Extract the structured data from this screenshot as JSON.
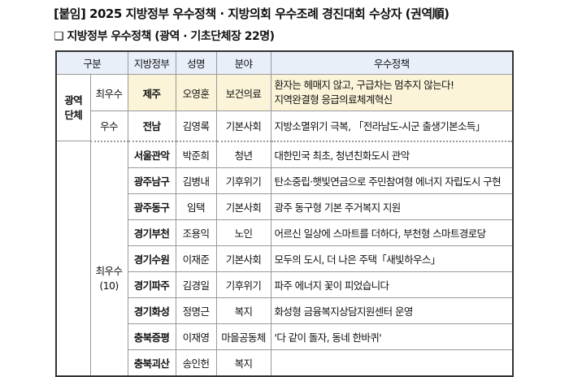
{
  "title": "[붙임] 2025 지방정부 우수정책 · 지방의회 우수조례 경진대회 수상자 (권역順)",
  "subtitle": "❑ 지방정부 우수정책 (광역 · 기초단체장 22명)",
  "headers": {
    "category": "구분",
    "gov": "지방정부",
    "name": "성명",
    "field": "분야",
    "policy": "우수정책"
  },
  "groups": {
    "metro": "광역\n단체",
    "top": "최우수",
    "excellent": "우수",
    "top10": "최우수\n(10)"
  },
  "metro_rows": [
    {
      "gov": "제주",
      "name": "오영훈",
      "field": "보건의료",
      "policy": "환자는 헤매지 않고, 구급차는 멈추지 않는다!",
      "policy2": "지역완결형 응급의료체계혁신"
    },
    {
      "gov": "전남",
      "name": "김영록",
      "field": "기본사회",
      "policy": "지방소멸위기 극복, 「전라남도-시군 출생기본소득」"
    }
  ],
  "basic_rows": [
    {
      "gov": "서울관악",
      "name": "박준희",
      "field": "청년",
      "policy": "대한민국 최초, 청년친화도시 관악"
    },
    {
      "gov": "광주남구",
      "name": "김병내",
      "field": "기후위기",
      "policy": "탄소중립·햇빛연금으로 주민참여형 에너지 자립도시 구현"
    },
    {
      "gov": "광주동구",
      "name": "임택",
      "field": "기본사회",
      "policy": "광주 동구형 기본 주거복지 지원"
    },
    {
      "gov": "경기부천",
      "name": "조용익",
      "field": "노인",
      "policy": "어르신 일상에 스마트를 더하다, 부천형 스마트경로당"
    },
    {
      "gov": "경기수원",
      "name": "이재준",
      "field": "기본사회",
      "policy": "모두의 도시, 더 나은 주택「새빛하우스」"
    },
    {
      "gov": "경기파주",
      "name": "김경일",
      "field": "기후위기",
      "policy": "파주 에너지 꽃이 피었습니다"
    },
    {
      "gov": "경기화성",
      "name": "정명근",
      "field": "복지",
      "policy": "화성형 금융복지상담지원센터 운영"
    },
    {
      "gov": "충북증평",
      "name": "이재영",
      "field": "마을공동체",
      "policy": "'다 같이 돌자, 동네 한바퀴'"
    },
    {
      "gov": "충북괴산",
      "name": "송인헌",
      "field": "복지",
      "policy": ""
    }
  ]
}
